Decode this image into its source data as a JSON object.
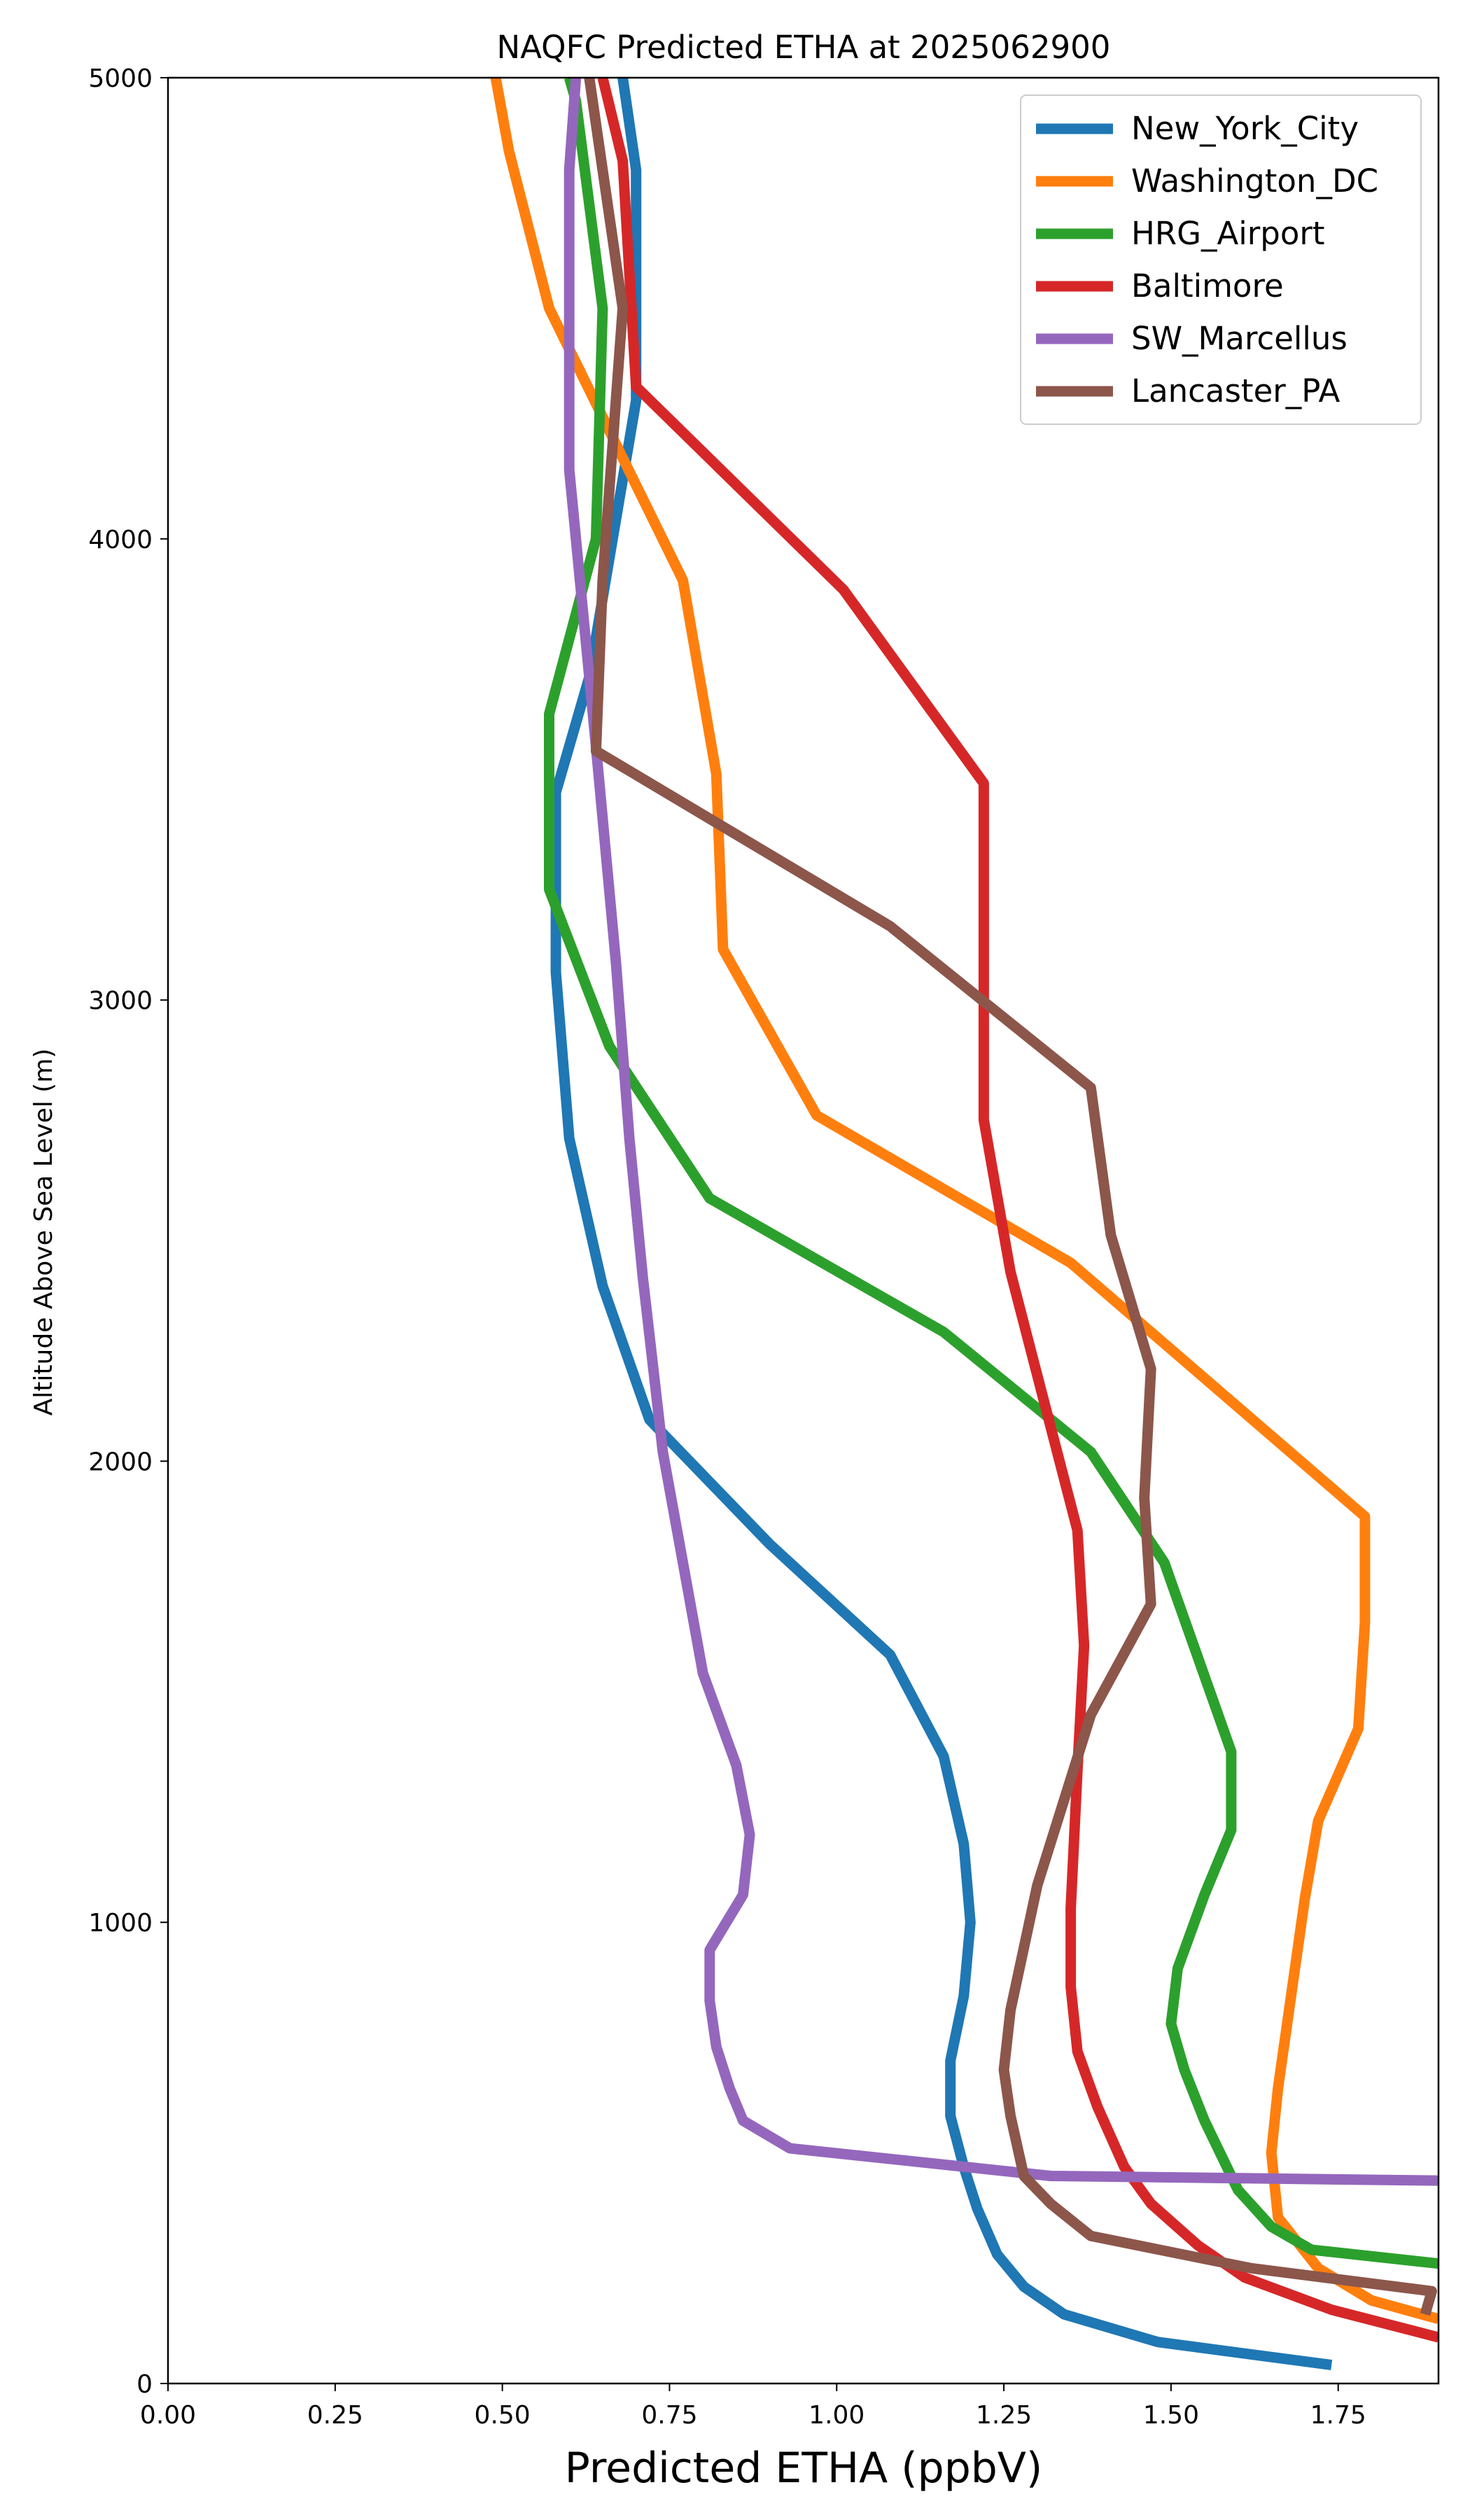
{
  "chart_data": {
    "type": "line",
    "title": "NAQFC Predicted ETHA at 2025062900",
    "xlabel": "Predicted ETHA (ppbV)",
    "ylabel": "Altitude Above Sea Level (m)",
    "xlim": [
      0,
      1.9
    ],
    "ylim": [
      0,
      5000
    ],
    "xticks": [
      0.0,
      0.25,
      0.5,
      0.75,
      1.0,
      1.25,
      1.5,
      1.75
    ],
    "xtick_labels": [
      "0.00",
      "0.25",
      "0.50",
      "0.75",
      "1.00",
      "1.25",
      "1.50",
      "1.75"
    ],
    "yticks": [
      0,
      1000,
      2000,
      3000,
      4000,
      5000
    ],
    "ytick_labels": [
      "0",
      "1000",
      "2000",
      "3000",
      "4000",
      "5000"
    ],
    "grid": false,
    "legend_position": "top-right",
    "series": [
      {
        "name": "New_York_City",
        "color": "#1f77b4",
        "points": [
          [
            1.74,
            40
          ],
          [
            1.48,
            90
          ],
          [
            1.34,
            150
          ],
          [
            1.28,
            210
          ],
          [
            1.24,
            280
          ],
          [
            1.21,
            380
          ],
          [
            1.19,
            470
          ],
          [
            1.17,
            580
          ],
          [
            1.17,
            700
          ],
          [
            1.19,
            840
          ],
          [
            1.2,
            1000
          ],
          [
            1.19,
            1170
          ],
          [
            1.16,
            1360
          ],
          [
            1.08,
            1580
          ],
          [
            0.9,
            1820
          ],
          [
            0.72,
            2090
          ],
          [
            0.65,
            2380
          ],
          [
            0.6,
            2700
          ],
          [
            0.58,
            3060
          ],
          [
            0.58,
            3450
          ],
          [
            0.63,
            3700
          ],
          [
            0.7,
            4300
          ],
          [
            0.7,
            4800
          ],
          [
            0.68,
            5000
          ]
        ]
      },
      {
        "name": "Washington_DC",
        "color": "#ff7f0e",
        "points": [
          [
            1.9,
            140
          ],
          [
            1.8,
            180
          ],
          [
            1.72,
            250
          ],
          [
            1.66,
            360
          ],
          [
            1.65,
            500
          ],
          [
            1.66,
            640
          ],
          [
            1.7,
            1050
          ],
          [
            1.72,
            1220
          ],
          [
            1.78,
            1420
          ],
          [
            1.79,
            1650
          ],
          [
            1.79,
            1880
          ],
          [
            1.35,
            2430
          ],
          [
            0.97,
            2750
          ],
          [
            0.83,
            3110
          ],
          [
            0.82,
            3490
          ],
          [
            0.77,
            3910
          ],
          [
            0.57,
            4500
          ],
          [
            0.51,
            4840
          ],
          [
            0.49,
            5000
          ]
        ]
      },
      {
        "name": "HRG_Airport",
        "color": "#2ca02c",
        "points": [
          [
            1.9,
            260
          ],
          [
            1.71,
            290
          ],
          [
            1.65,
            340
          ],
          [
            1.6,
            420
          ],
          [
            1.55,
            570
          ],
          [
            1.52,
            680
          ],
          [
            1.5,
            780
          ],
          [
            1.51,
            900
          ],
          [
            1.55,
            1060
          ],
          [
            1.59,
            1200
          ],
          [
            1.59,
            1370
          ],
          [
            1.49,
            1780
          ],
          [
            1.38,
            2020
          ],
          [
            1.16,
            2280
          ],
          [
            0.81,
            2570
          ],
          [
            0.66,
            2900
          ],
          [
            0.57,
            3240
          ],
          [
            0.57,
            3620
          ],
          [
            0.64,
            4000
          ],
          [
            0.65,
            4500
          ],
          [
            0.61,
            4950
          ],
          [
            0.6,
            5000
          ]
        ]
      },
      {
        "name": "Baltimore",
        "color": "#d62728",
        "points": [
          [
            1.9,
            100
          ],
          [
            1.74,
            160
          ],
          [
            1.61,
            230
          ],
          [
            1.54,
            300
          ],
          [
            1.47,
            390
          ],
          [
            1.43,
            470
          ],
          [
            1.39,
            600
          ],
          [
            1.36,
            720
          ],
          [
            1.35,
            860
          ],
          [
            1.35,
            1030
          ],
          [
            1.36,
            1330
          ],
          [
            1.37,
            1600
          ],
          [
            1.36,
            1850
          ],
          [
            1.26,
            2410
          ],
          [
            1.22,
            2740
          ],
          [
            1.22,
            3470
          ],
          [
            1.01,
            3890
          ],
          [
            0.7,
            4330
          ],
          [
            0.68,
            4820
          ],
          [
            0.65,
            5000
          ]
        ]
      },
      {
        "name": "SW_Marcellus",
        "color": "#9467bd",
        "points": [
          [
            1.9,
            440
          ],
          [
            1.32,
            450
          ],
          [
            0.93,
            510
          ],
          [
            0.86,
            570
          ],
          [
            0.84,
            640
          ],
          [
            0.82,
            730
          ],
          [
            0.81,
            830
          ],
          [
            0.81,
            940
          ],
          [
            0.86,
            1060
          ],
          [
            0.87,
            1190
          ],
          [
            0.85,
            1340
          ],
          [
            0.8,
            1540
          ],
          [
            0.77,
            1780
          ],
          [
            0.74,
            2020
          ],
          [
            0.71,
            2400
          ],
          [
            0.69,
            2700
          ],
          [
            0.67,
            3080
          ],
          [
            0.64,
            3550
          ],
          [
            0.6,
            4150
          ],
          [
            0.6,
            4500
          ],
          [
            0.6,
            4800
          ],
          [
            0.61,
            5000
          ]
        ]
      },
      {
        "name": "Lancaster_PA",
        "color": "#8c564b",
        "points": [
          [
            1.88,
            150
          ],
          [
            1.89,
            200
          ],
          [
            1.62,
            250
          ],
          [
            1.38,
            320
          ],
          [
            1.32,
            390
          ],
          [
            1.28,
            450
          ],
          [
            1.26,
            580
          ],
          [
            1.25,
            680
          ],
          [
            1.26,
            810
          ],
          [
            1.3,
            1080
          ],
          [
            1.38,
            1450
          ],
          [
            1.47,
            1690
          ],
          [
            1.46,
            1920
          ],
          [
            1.47,
            2200
          ],
          [
            1.41,
            2490
          ],
          [
            1.38,
            2810
          ],
          [
            1.08,
            3160
          ],
          [
            0.64,
            3540
          ],
          [
            0.65,
            3910
          ],
          [
            0.68,
            4500
          ],
          [
            0.65,
            4800
          ],
          [
            0.63,
            5000
          ]
        ]
      }
    ]
  }
}
